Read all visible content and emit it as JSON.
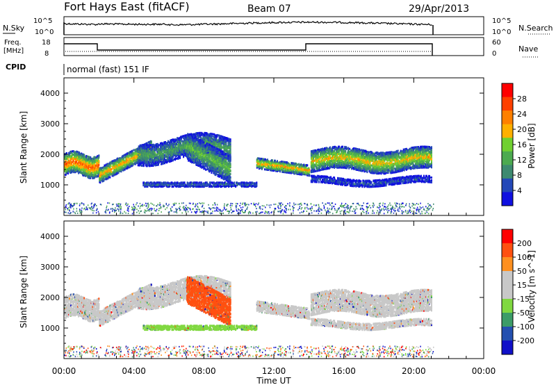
{
  "header": {
    "title": "Fort Hays East (fitACF)",
    "beam": "Beam 07",
    "date": "29/Apr/2013"
  },
  "noise_panel": {
    "left_label": "N.Sky",
    "left_ticks": [
      "10^5",
      "10^0"
    ],
    "right_label": "N.Search",
    "right_ticks": [
      "10^5",
      "10^0"
    ]
  },
  "freq_panel": {
    "left_label_1": "Freq.",
    "left_label_2": "[MHz]",
    "left_ticks": [
      "18",
      "8"
    ],
    "right_label": "Nave",
    "right_ticks": [
      "60",
      "0"
    ]
  },
  "cpid": {
    "label": "CPID",
    "program": "normal (fast) 151 IF"
  },
  "colors": {
    "power_scale": [
      "#1010e0",
      "#2448b8",
      "#3d8a70",
      "#4caa50",
      "#70d030",
      "#ffb000",
      "#ff8000",
      "#ff4000",
      "#ff0000"
    ],
    "velocity_scale": [
      "#ff0000",
      "#ff5010",
      "#ff9020",
      "#c8c8c8",
      "#c8c8c8",
      "#80d840",
      "#3c9c68",
      "#2450b0",
      "#1010c8"
    ]
  },
  "chart_data": [
    {
      "type": "heatmap",
      "name": "power",
      "ylabel": "Slant Range [km]",
      "xlabel": "",
      "x_range_hours": [
        0,
        24
      ],
      "ylim": [
        0,
        4500
      ],
      "y_ticks": [
        "1000",
        "2000",
        "3000",
        "4000"
      ],
      "colorbar": {
        "label": "Power [dB]",
        "ticks": [
          "28",
          "24",
          "20",
          "16",
          "12",
          "8",
          "4"
        ],
        "range": [
          0,
          32
        ]
      }
    },
    {
      "type": "heatmap",
      "name": "velocity",
      "ylabel": "Slant Range [km]",
      "xlabel": "Time UT",
      "x_range_hours": [
        0,
        24
      ],
      "x_ticks": [
        "00:00",
        "04:00",
        "08:00",
        "12:00",
        "16:00",
        "20:00",
        "00:00"
      ],
      "ylim": [
        0,
        4500
      ],
      "y_ticks": [
        "1000",
        "2000",
        "3000",
        "4000"
      ],
      "colorbar": {
        "label": "Velocity [m s^-1]",
        "ticks": [
          "200",
          "100",
          "50",
          "15",
          "-15",
          "-50",
          "-100",
          "-200"
        ],
        "range": [
          -250,
          250
        ]
      }
    }
  ]
}
